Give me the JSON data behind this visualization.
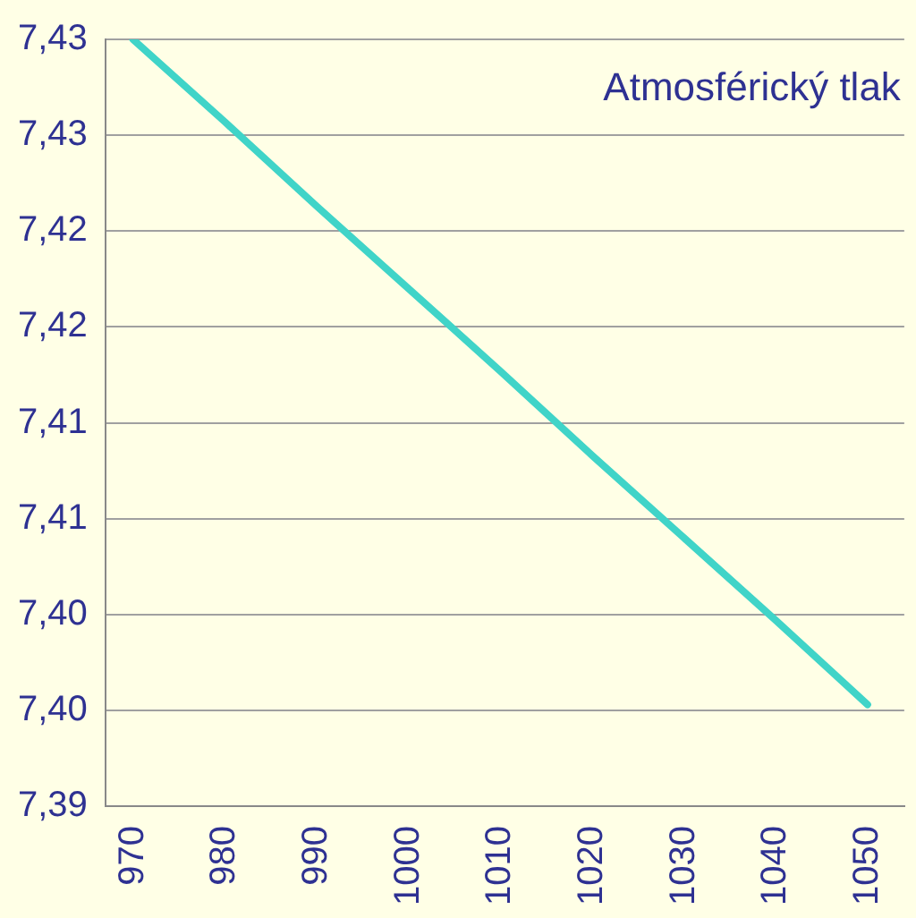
{
  "chart_data": {
    "type": "line",
    "title": "Atmosférický tlak",
    "x": [
      970,
      980,
      990,
      1000,
      1010,
      1020,
      1030,
      1040,
      1050
    ],
    "series": [
      {
        "color": "#40d4c8",
        "values": [
          7.43,
          7.4257,
          7.4213,
          7.417,
          7.4127,
          7.4083,
          7.404,
          7.3997,
          7.3953
        ]
      }
    ],
    "xlim": [
      967,
      1054
    ],
    "xticks": [
      970,
      980,
      990,
      1000,
      1010,
      1020,
      1030,
      1040,
      1050
    ],
    "ylim": [
      7.39,
      7.43
    ],
    "yticks": [
      {
        "value": 7.39,
        "label": "7,39"
      },
      {
        "value": 7.395,
        "label": "7,40"
      },
      {
        "value": 7.4,
        "label": "7,40"
      },
      {
        "value": 7.405,
        "label": "7,41"
      },
      {
        "value": 7.41,
        "label": "7,41"
      },
      {
        "value": 7.415,
        "label": "7,42"
      },
      {
        "value": 7.42,
        "label": "7,42"
      },
      {
        "value": 7.425,
        "label": "7,43"
      },
      {
        "value": 7.43,
        "label": "7,43"
      }
    ],
    "grid": "y",
    "legend": false,
    "marker": "none",
    "line_style": "solid"
  }
}
